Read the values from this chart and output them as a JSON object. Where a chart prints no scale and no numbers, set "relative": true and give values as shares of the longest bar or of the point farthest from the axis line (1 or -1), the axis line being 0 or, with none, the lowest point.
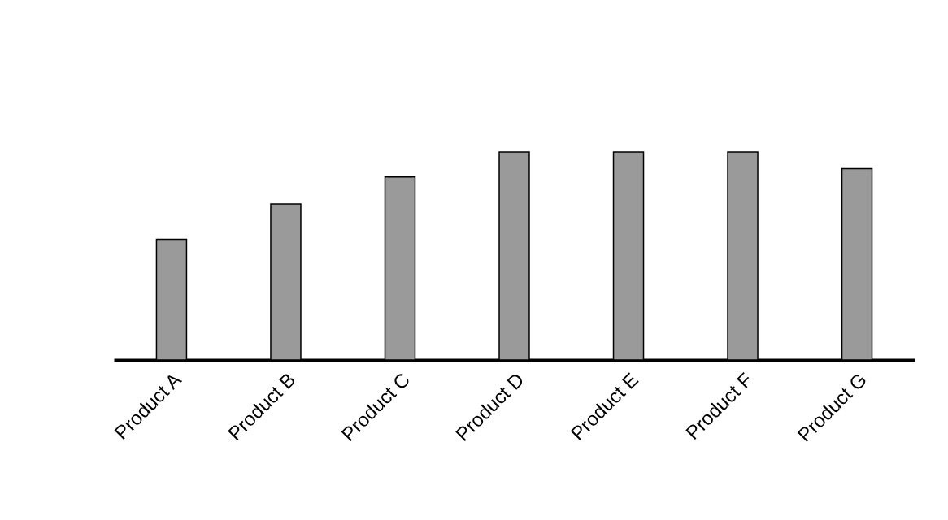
{
  "chart_data": {
    "type": "bar",
    "relative": true,
    "categories": [
      "Product A",
      "Product B",
      "Product C",
      "Product D",
      "Product E",
      "Product F",
      "Product G"
    ],
    "values": [
      0.58,
      0.75,
      0.88,
      1.0,
      1.0,
      1.0,
      0.92
    ],
    "color": "#9a9a9a"
  }
}
